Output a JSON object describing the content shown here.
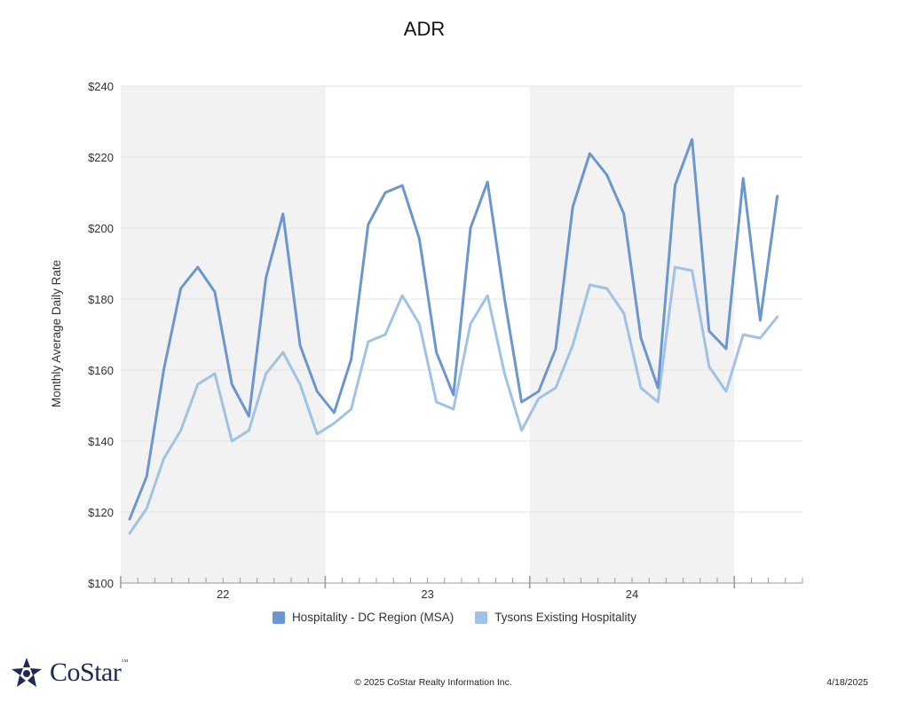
{
  "chart_data": {
    "type": "line",
    "title": "ADR",
    "ylabel": "Monthly Average Daily Rate",
    "xlabel": "",
    "ylim": [
      100,
      240
    ],
    "yticks": [
      "$100",
      "$120",
      "$140",
      "$160",
      "$180",
      "$200",
      "$220",
      "$240"
    ],
    "ytick_values": [
      100,
      120,
      140,
      160,
      180,
      200,
      220,
      240
    ],
    "x_start": "2022-01",
    "x_end": "2025-04",
    "year_labels": [
      "22",
      "23",
      "24"
    ],
    "shaded_years": [
      "22",
      "24"
    ],
    "grid": true,
    "legend_position": "bottom",
    "series": [
      {
        "name": "Hospitality - DC Region (MSA)",
        "color": "#6a97d0",
        "values": [
          118,
          130,
          160,
          183,
          189,
          182,
          156,
          147,
          186,
          204,
          167,
          154,
          148,
          163,
          201,
          210,
          212,
          197,
          165,
          153,
          200,
          213,
          180,
          151,
          154,
          166,
          206,
          221,
          215,
          204,
          169,
          155,
          212,
          225,
          171,
          166,
          214,
          174,
          209
        ]
      },
      {
        "name": "Tysons Existing Hospitality",
        "color": "#9fc2e5",
        "values": [
          114,
          121,
          135,
          143,
          156,
          159,
          140,
          143,
          159,
          165,
          156,
          142,
          145,
          149,
          168,
          170,
          181,
          173,
          151,
          149,
          173,
          181,
          159,
          143,
          152,
          155,
          167,
          184,
          183,
          176,
          155,
          151,
          189,
          188,
          161,
          154,
          170,
          169,
          175
        ]
      }
    ]
  },
  "footer": {
    "logo_text": "CoStar",
    "logo_tm": "™",
    "copyright": "© 2025 CoStar Realty Information Inc.",
    "date": "4/18/2025"
  }
}
